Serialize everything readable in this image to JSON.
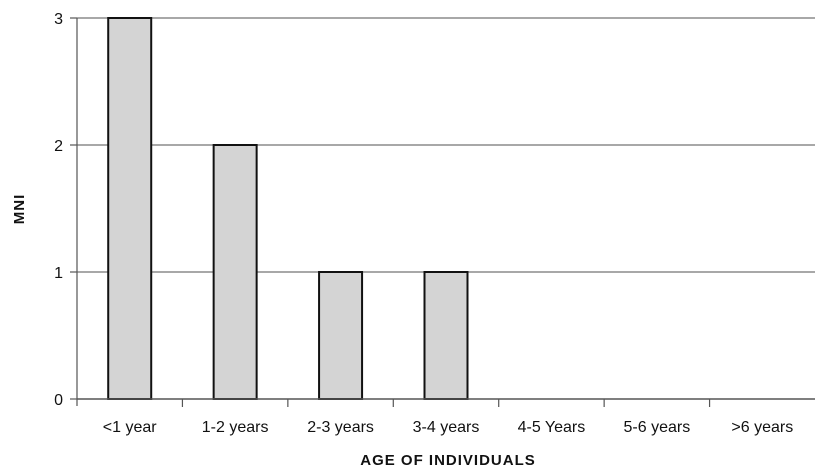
{
  "chart_data": {
    "type": "bar",
    "categories": [
      "<1 year",
      "1-2 years",
      "2-3 years",
      "3-4 years",
      "4-5 Years",
      "5-6 years",
      ">6 years"
    ],
    "values": [
      3,
      2,
      1,
      1,
      0,
      0,
      0
    ],
    "title": "",
    "xlabel": "AGE OF INDIVIDUALS",
    "ylabel": "MNI",
    "ylim": [
      0,
      3
    ],
    "yticks": [
      0,
      1,
      2,
      3
    ],
    "grid": true,
    "legend": "none",
    "colors": {
      "bar_fill": "#d4d4d4",
      "bar_stroke": "#111111",
      "grid": "#8c8c8c"
    }
  }
}
